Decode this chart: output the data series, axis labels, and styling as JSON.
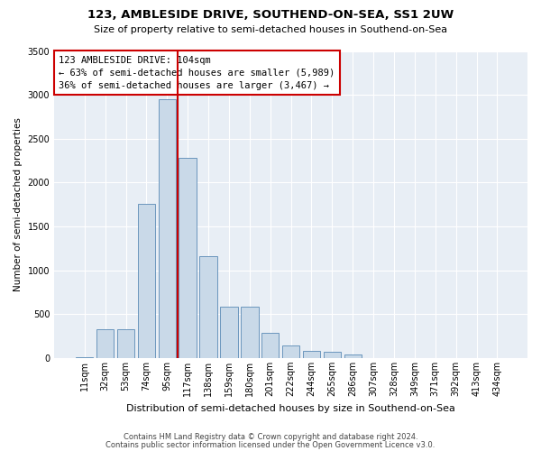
{
  "title1": "123, AMBLESIDE DRIVE, SOUTHEND-ON-SEA, SS1 2UW",
  "title2": "Size of property relative to semi-detached houses in Southend-on-Sea",
  "xlabel": "Distribution of semi-detached houses by size in Southend-on-Sea",
  "ylabel": "Number of semi-detached properties",
  "footer1": "Contains HM Land Registry data © Crown copyright and database right 2024.",
  "footer2": "Contains public sector information licensed under the Open Government Licence v3.0.",
  "annotation_title": "123 AMBLESIDE DRIVE: 104sqm",
  "annotation_line2": "← 63% of semi-detached houses are smaller (5,989)",
  "annotation_line3": "36% of semi-detached houses are larger (3,467) →",
  "categories": [
    "11sqm",
    "32sqm",
    "53sqm",
    "74sqm",
    "95sqm",
    "117sqm",
    "138sqm",
    "159sqm",
    "180sqm",
    "201sqm",
    "222sqm",
    "244sqm",
    "265sqm",
    "286sqm",
    "307sqm",
    "328sqm",
    "349sqm",
    "371sqm",
    "392sqm",
    "413sqm",
    "434sqm"
  ],
  "values": [
    10,
    330,
    330,
    1760,
    2950,
    2280,
    1160,
    590,
    590,
    290,
    140,
    80,
    75,
    40,
    0,
    0,
    0,
    0,
    0,
    0,
    0
  ],
  "bar_color": "#c9d9e8",
  "bar_edge_color": "#5a8ab5",
  "vline_color": "#cc0000",
  "vline_x": 4.5,
  "annotation_box_color": "#cc0000",
  "background_color": "#e8eef5",
  "ylim": [
    0,
    3500
  ],
  "yticks": [
    0,
    500,
    1000,
    1500,
    2000,
    2500,
    3000,
    3500
  ],
  "title1_fontsize": 9.5,
  "title2_fontsize": 8,
  "ylabel_fontsize": 7.5,
  "xlabel_fontsize": 8,
  "tick_fontsize": 7,
  "footer_fontsize": 6
}
